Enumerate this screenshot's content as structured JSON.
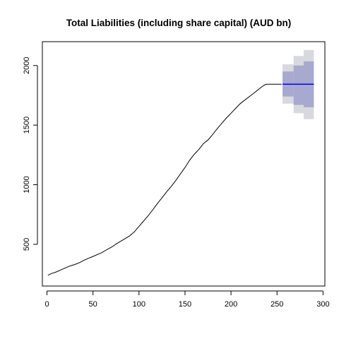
{
  "chart_data": {
    "type": "line",
    "title": "Total Liabilities (including share capital) (AUD bn)",
    "xlabel": "",
    "ylabel": "",
    "xlim": [
      -5,
      302
    ],
    "ylim": [
      150,
      2200
    ],
    "x_ticks": [
      0,
      50,
      100,
      150,
      200,
      250,
      300
    ],
    "y_ticks": [
      500,
      1000,
      1500,
      2000
    ],
    "grid": false,
    "legend": "none",
    "series": [
      {
        "points": [
          [
            1,
            240
          ],
          [
            5,
            255
          ],
          [
            10,
            268
          ],
          [
            15,
            285
          ],
          [
            20,
            302
          ],
          [
            25,
            318
          ],
          [
            30,
            330
          ],
          [
            35,
            345
          ],
          [
            40,
            365
          ],
          [
            45,
            382
          ],
          [
            50,
            398
          ],
          [
            55,
            415
          ],
          [
            60,
            432
          ],
          [
            65,
            455
          ],
          [
            70,
            475
          ],
          [
            75,
            502
          ],
          [
            80,
            525
          ],
          [
            85,
            548
          ],
          [
            90,
            572
          ],
          [
            95,
            605
          ],
          [
            100,
            650
          ],
          [
            105,
            695
          ],
          [
            110,
            740
          ],
          [
            115,
            790
          ],
          [
            120,
            842
          ],
          [
            125,
            890
          ],
          [
            130,
            940
          ],
          [
            135,
            985
          ],
          [
            140,
            1035
          ],
          [
            145,
            1090
          ],
          [
            150,
            1145
          ],
          [
            155,
            1205
          ],
          [
            160,
            1255
          ],
          [
            165,
            1295
          ],
          [
            170,
            1345
          ],
          [
            175,
            1375
          ],
          [
            180,
            1420
          ],
          [
            185,
            1470
          ],
          [
            190,
            1515
          ],
          [
            195,
            1560
          ],
          [
            200,
            1600
          ],
          [
            205,
            1640
          ],
          [
            210,
            1680
          ],
          [
            215,
            1710
          ],
          [
            220,
            1740
          ],
          [
            225,
            1770
          ],
          [
            230,
            1800
          ],
          [
            235,
            1830
          ],
          [
            238,
            1843
          ],
          [
            255,
            1843
          ]
        ]
      }
    ],
    "forecast": {
      "x_start": 256,
      "x_end": 290,
      "point_forecast": 1843,
      "steps": [
        {
          "x_start": 256,
          "x_end": 268,
          "lo80": 1740,
          "hi80": 1950,
          "lo95": 1680,
          "hi95": 2010
        },
        {
          "x_start": 268,
          "x_end": 279,
          "lo80": 1670,
          "hi80": 2000,
          "lo95": 1600,
          "hi95": 2080
        },
        {
          "x_start": 279,
          "x_end": 290,
          "lo80": 1650,
          "hi80": 2035,
          "lo95": 1550,
          "hi95": 2130
        }
      ]
    },
    "colors": {
      "line": "#000000",
      "forecast_line": "#0000ff",
      "band80": "#a7a9cf",
      "band95": "#d8d8e0",
      "axis": "#000000"
    }
  }
}
